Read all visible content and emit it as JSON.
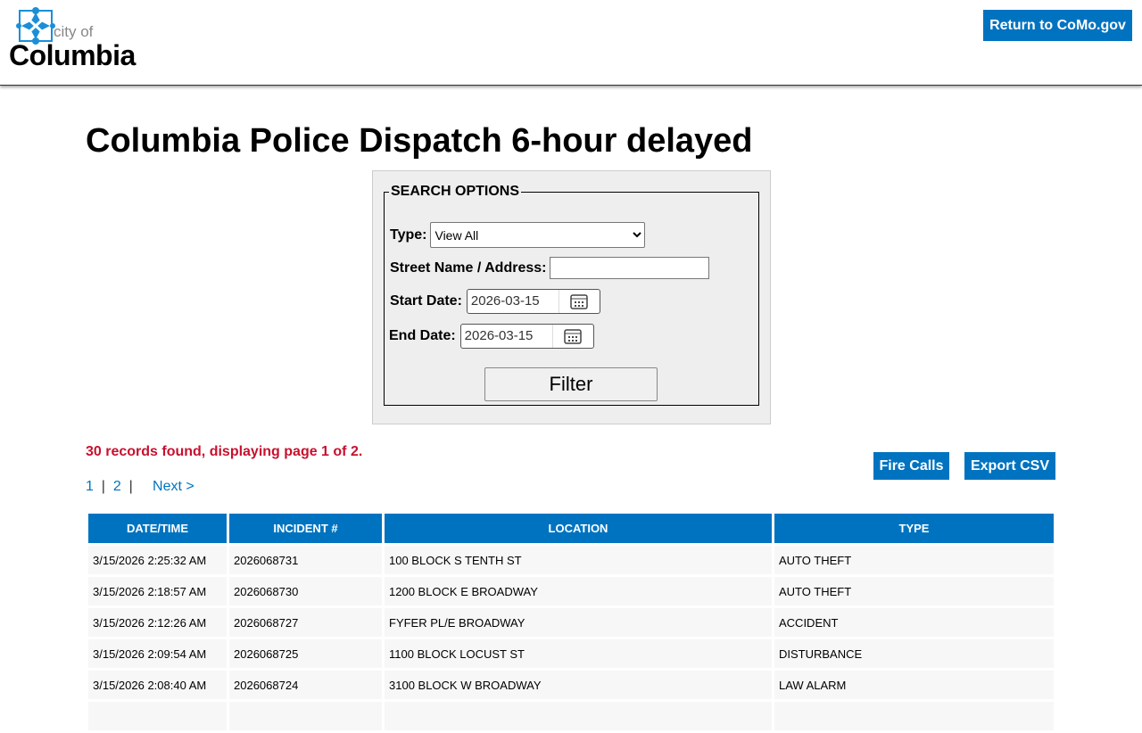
{
  "header": {
    "logo_small": "city of",
    "logo_big": "Columbia",
    "return_label": "Return to CoMo.gov"
  },
  "title": "Columbia Police Dispatch 6-hour delayed",
  "search": {
    "legend": "SEARCH OPTIONS",
    "type_label": "Type:",
    "type_value": "View All",
    "street_label": "Street Name / Address:",
    "street_value": "",
    "start_label": "Start Date:",
    "start_value": "2026-03-15",
    "end_label": "End Date:",
    "end_value": "2026-03-15",
    "filter_label": "Filter"
  },
  "status": "30 records found, displaying page 1 of 2.",
  "pager": {
    "p1": "1",
    "sep1": "|",
    "p2": "2",
    "sep2": "|",
    "next": "Next >"
  },
  "actions": {
    "fire": "Fire Calls",
    "export": "Export CSV"
  },
  "colors": {
    "accent": "#0073c0",
    "status": "#c8102e"
  },
  "table": {
    "headers": [
      "DATE/TIME",
      "INCIDENT #",
      "LOCATION",
      "TYPE"
    ],
    "rows": [
      [
        "3/15/2026 2:25:32 AM",
        "2026068731",
        "100 BLOCK S TENTH ST",
        "AUTO THEFT"
      ],
      [
        "3/15/2026 2:18:57 AM",
        "2026068730",
        "1200 BLOCK E BROADWAY",
        "AUTO THEFT"
      ],
      [
        "3/15/2026 2:12:26 AM",
        "2026068727",
        "FYFER PL/E BROADWAY",
        "ACCIDENT"
      ],
      [
        "3/15/2026 2:09:54 AM",
        "2026068725",
        "1100 BLOCK LOCUST ST",
        "DISTURBANCE"
      ],
      [
        "3/15/2026 2:08:40 AM",
        "2026068724",
        "3100 BLOCK W BROADWAY",
        "LAW ALARM"
      ]
    ]
  }
}
